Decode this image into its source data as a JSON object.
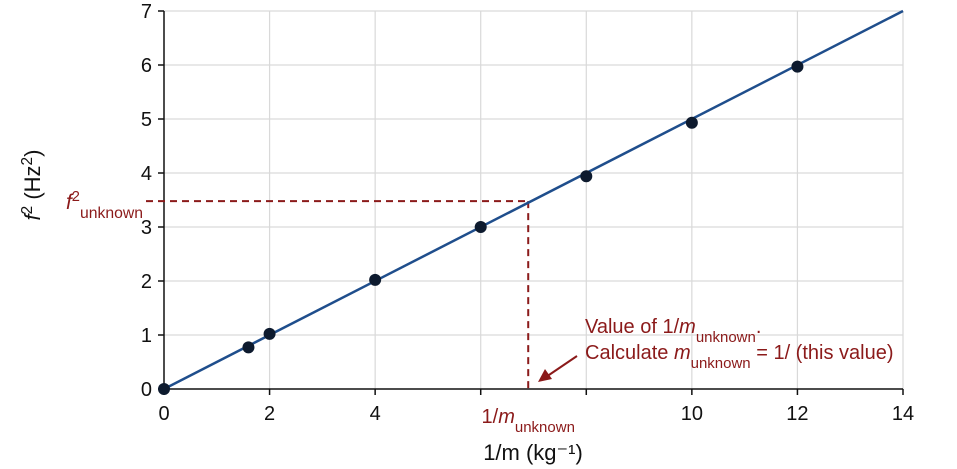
{
  "chart_data": {
    "type": "scatter",
    "title": "",
    "xlabel": "1/m (kg⁻¹)",
    "xlabel_parts": {
      "pre": "1/",
      "var": "m",
      "post": " (kg",
      "sup": "-1",
      "end": ")"
    },
    "ylabel_parts": {
      "var": "f",
      "sup": "2",
      "post": " (Hz",
      "sup2": "2",
      "end": ")"
    },
    "xlim": [
      0,
      14
    ],
    "ylim": [
      0,
      7
    ],
    "xticks": [
      0,
      2,
      4,
      10,
      12,
      14
    ],
    "xgrid": [
      2,
      4,
      6,
      8,
      10,
      12,
      14
    ],
    "yticks": [
      0,
      1,
      2,
      3,
      4,
      5,
      6,
      7
    ],
    "grid": true,
    "series": [
      {
        "name": "data",
        "x": [
          0,
          1.6,
          2,
          4,
          6,
          8,
          10,
          12
        ],
        "y": [
          0,
          0.77,
          1.02,
          2.02,
          3.0,
          3.94,
          4.93,
          5.97
        ]
      }
    ],
    "fit_line": {
      "x": [
        0,
        14
      ],
      "y": [
        0,
        7
      ]
    },
    "unknown": {
      "x": 6.9,
      "y": 3.48
    },
    "annotations": {
      "x_unknown_label": {
        "pre": "1/",
        "var": "m",
        "sub": "unknown"
      },
      "y_unknown_label": {
        "var": "f",
        "sup": "2",
        "sub": "unknown"
      },
      "note_line1": {
        "pre": "Value of 1/",
        "var": "m",
        "sub": "unknown",
        "end": "."
      },
      "note_line2": {
        "pre": "Calculate ",
        "var": "m",
        "sub": "unknown",
        "end": " = 1/ (this value)"
      }
    },
    "colors": {
      "line": "#1f4e8c",
      "points": "#0d1a2e",
      "annotation": "#8b1a1a",
      "grid": "#d9d9d9"
    }
  }
}
